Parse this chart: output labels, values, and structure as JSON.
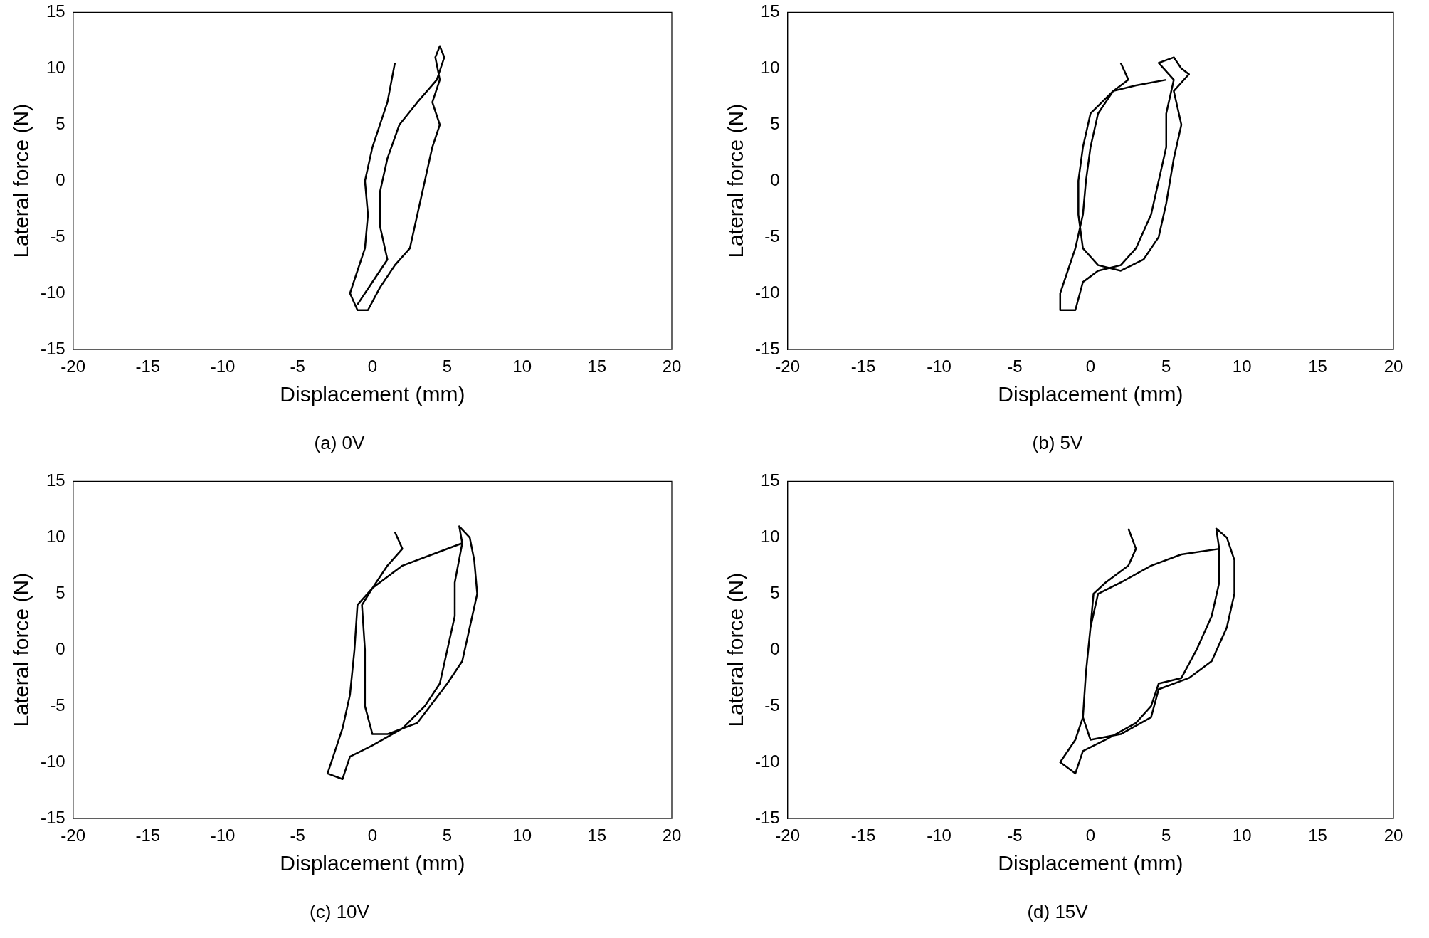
{
  "chart_data": [
    {
      "type": "line",
      "title": "(a) 0V",
      "xlabel": "Displacement (mm)",
      "ylabel": "Lateral force (N)",
      "xlim": [
        -20,
        20
      ],
      "xticks": [
        -20,
        -15,
        -10,
        -5,
        0,
        5,
        10,
        15,
        20
      ],
      "ylim": [
        -15,
        15
      ],
      "yticks": [
        -15,
        -10,
        -5,
        0,
        5,
        10,
        15
      ],
      "grid": false,
      "legend": false,
      "marker": "none",
      "line_style": "solid",
      "series": [
        {
          "color": "#000000",
          "x": [
            1.5,
            1,
            0,
            -0.5,
            -0.3,
            -0.5,
            -1,
            -1.5,
            -1,
            -0.3,
            0.5,
            1.5,
            2.5,
            3,
            3.5,
            4,
            4.5,
            4,
            4.5,
            4.2,
            4.5,
            4.8,
            4.3,
            3,
            1.8,
            1,
            0.5,
            0.5,
            1,
            0,
            -1
          ],
          "values": [
            10.5,
            7,
            3,
            0,
            -3,
            -6,
            -8,
            -10,
            -11.5,
            -11.5,
            -9.5,
            -7.5,
            -6,
            -3,
            0,
            3,
            5,
            7,
            9,
            11,
            12,
            11,
            9,
            7,
            5,
            2,
            -1,
            -4,
            -7,
            -9,
            -11
          ]
        }
      ]
    },
    {
      "type": "line",
      "title": "(b) 5V",
      "xlabel": "Displacement (mm)",
      "ylabel": "Lateral force (N)",
      "xlim": [
        -20,
        20
      ],
      "xticks": [
        -20,
        -15,
        -10,
        -5,
        0,
        5,
        10,
        15,
        20
      ],
      "ylim": [
        -15,
        15
      ],
      "yticks": [
        -15,
        -10,
        -5,
        0,
        5,
        10,
        15
      ],
      "grid": false,
      "legend": false,
      "marker": "none",
      "line_style": "solid",
      "series": [
        {
          "color": "#000000",
          "x": [
            2,
            2.5,
            1.5,
            0.5,
            0,
            -0.3,
            -0.5,
            -1,
            -1.5,
            -2,
            -2,
            -1,
            -0.5,
            0.5,
            2,
            3,
            4,
            4.5,
            5,
            5,
            5.5,
            4.5,
            5.5,
            6,
            6.5,
            5.5,
            6,
            5.5,
            5,
            4.5,
            3.5,
            2,
            0.5,
            -0.5,
            -0.8,
            -0.8,
            -0.5,
            0,
            1.5,
            3,
            5
          ],
          "values": [
            10.5,
            9,
            8,
            6,
            3,
            0,
            -3,
            -6,
            -8,
            -10,
            -11.5,
            -11.5,
            -9,
            -8,
            -7.5,
            -6,
            -3,
            0,
            3,
            6,
            9,
            10.5,
            11,
            10,
            9.5,
            8,
            5,
            2,
            -2,
            -5,
            -7,
            -8,
            -7.5,
            -6,
            -3,
            0,
            3,
            6,
            8,
            8.5,
            9
          ]
        }
      ]
    },
    {
      "type": "line",
      "title": "(c) 10V",
      "xlabel": "Displacement (mm)",
      "ylabel": "Lateral force (N)",
      "xlim": [
        -20,
        20
      ],
      "xticks": [
        -20,
        -15,
        -10,
        -5,
        0,
        5,
        10,
        15,
        20
      ],
      "ylim": [
        -15,
        15
      ],
      "yticks": [
        -15,
        -10,
        -5,
        0,
        5,
        10,
        15
      ],
      "grid": false,
      "legend": false,
      "marker": "none",
      "line_style": "solid",
      "series": [
        {
          "color": "#000000",
          "x": [
            1.5,
            2,
            1,
            0,
            -1,
            -1.2,
            -1.5,
            -2,
            -2.5,
            -3,
            -2,
            -1.5,
            0,
            2,
            3.5,
            4.5,
            5,
            5.5,
            5.5,
            6,
            5.8,
            6.5,
            6.8,
            7,
            6.5,
            6,
            5,
            3,
            1,
            0,
            -0.5,
            -0.5,
            -0.7,
            0,
            2,
            4,
            6
          ],
          "values": [
            10.5,
            9,
            7.5,
            5.5,
            4,
            0,
            -4,
            -7,
            -9,
            -11,
            -11.5,
            -9.5,
            -8.5,
            -7,
            -5,
            -3,
            0,
            3,
            6,
            9.5,
            11,
            10,
            8,
            5,
            2,
            -1,
            -3,
            -6.5,
            -7.5,
            -7.5,
            -5,
            0,
            4,
            5.5,
            7.5,
            8.5,
            9.5
          ]
        }
      ]
    },
    {
      "type": "line",
      "title": "(d) 15V",
      "xlabel": "Displacement (mm)",
      "ylabel": "Lateral force (N)",
      "xlim": [
        -20,
        20
      ],
      "xticks": [
        -20,
        -15,
        -10,
        -5,
        0,
        5,
        10,
        15,
        20
      ],
      "ylim": [
        -15,
        15
      ],
      "yticks": [
        -15,
        -10,
        -5,
        0,
        5,
        10,
        15
      ],
      "grid": false,
      "legend": false,
      "marker": "none",
      "line_style": "solid",
      "series": [
        {
          "color": "#000000",
          "x": [
            2.5,
            3,
            2.5,
            1,
            0.2,
            0,
            -0.3,
            -0.5,
            -1,
            -2,
            -1,
            -0.5,
            1,
            3,
            4,
            4.5,
            6,
            7,
            8,
            8.5,
            8.5,
            8.3,
            9,
            9.5,
            9.5,
            9,
            8,
            6.5,
            4.5,
            4,
            2,
            0,
            -0.5,
            -0.3,
            0,
            0.5,
            2,
            4,
            6,
            8.5
          ],
          "values": [
            10.8,
            9,
            7.5,
            6,
            5,
            2,
            -2,
            -6,
            -8,
            -10,
            -11,
            -9,
            -8,
            -6.5,
            -5,
            -3,
            -2.5,
            0,
            3,
            6,
            9,
            10.8,
            10,
            8,
            5,
            2,
            -1,
            -2.5,
            -3.5,
            -6,
            -7.5,
            -8,
            -6,
            -2,
            2,
            5,
            6,
            7.5,
            8.5,
            9
          ]
        }
      ]
    }
  ]
}
